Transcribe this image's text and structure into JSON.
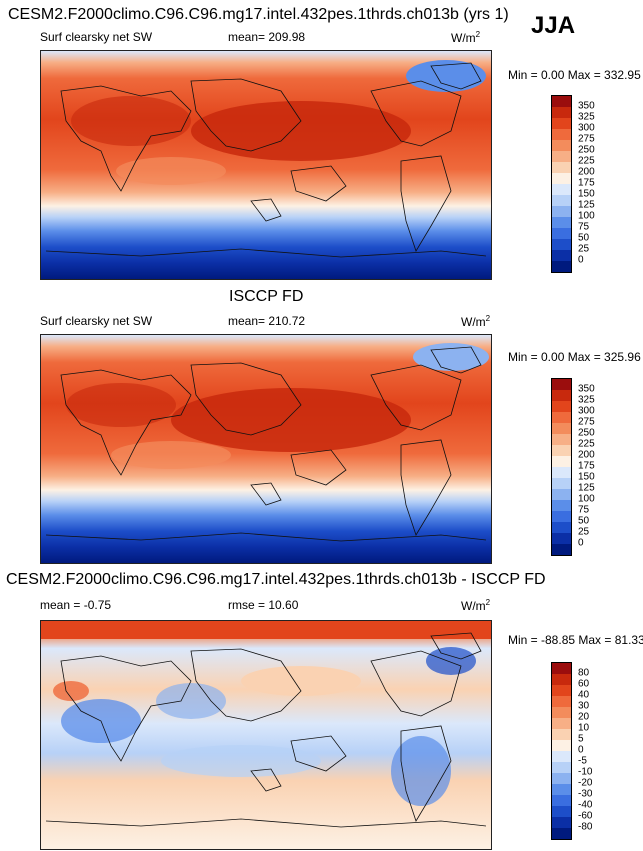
{
  "season": "JJA",
  "units_label": "W/m",
  "units_power": "2",
  "panel1": {
    "title": "CESM2.F2000climo.C96.C96.mg17.intel.432pes.1thrds.ch013b (yrs 1)",
    "variable": "Surf clearsky net SW",
    "mean": "mean= 209.98",
    "minmax": "Min =    0.00 Max = 332.95"
  },
  "panel2": {
    "title": "ISCCP FD",
    "variable": "Surf clearsky net SW",
    "mean": "mean= 210.72",
    "minmax": "Min =    0.00 Max = 325.96"
  },
  "panel3": {
    "title": "CESM2.F2000climo.C96.C96.mg17.intel.432pes.1thrds.ch013b - ISCCP FD",
    "mean": "mean =  -0.75",
    "rmse": "rmse =  10.60",
    "minmax": "Min = -88.85 Max =  81.33"
  },
  "colorbar_abs": {
    "labels": [
      "350",
      "325",
      "300",
      "275",
      "250",
      "225",
      "200",
      "175",
      "150",
      "125",
      "100",
      "75",
      "50",
      "25",
      "0"
    ],
    "colors": [
      "#9b0d0d",
      "#c8290d",
      "#e2451c",
      "#ef6a3c",
      "#f38c5c",
      "#f7af86",
      "#fad2b2",
      "#fdf1e4",
      "#dbe8fb",
      "#b7d1f7",
      "#8cb2f0",
      "#5b8ee9",
      "#3a6ee0",
      "#1d4ec9",
      "#0b2fa6",
      "#001a7e"
    ]
  },
  "colorbar_diff": {
    "labels": [
      "80",
      "60",
      "40",
      "30",
      "20",
      "10",
      "5",
      "0",
      "-5",
      "-10",
      "-20",
      "-30",
      "-40",
      "-60",
      "-80"
    ],
    "colors": [
      "#9b0d0d",
      "#c8290d",
      "#e2451c",
      "#ef6a3c",
      "#f38c5c",
      "#f7af86",
      "#fad2b2",
      "#fdf1e4",
      "#dbe8fb",
      "#b7d1f7",
      "#8cb2f0",
      "#5b8ee9",
      "#3a6ee0",
      "#1d4ec9",
      "#0b2fa6",
      "#001a7e"
    ]
  }
}
